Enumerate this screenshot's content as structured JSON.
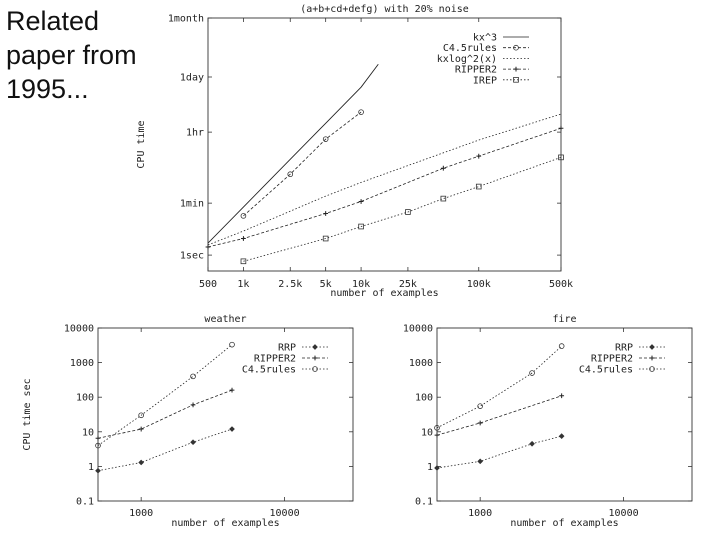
{
  "slide": {
    "caption": [
      "Related",
      "paper from",
      "1995..."
    ]
  },
  "chart_data": [
    {
      "type": "line",
      "title": "(a+b+cd+defg) with 20% noise",
      "xlabel": "number of examples",
      "ylabel": "CPU time",
      "x_scale": "log",
      "y_scale": "log",
      "x_ticks": [
        {
          "v": 500,
          "label": "500"
        },
        {
          "v": 1000,
          "label": "1k"
        },
        {
          "v": 2500,
          "label": "2.5k"
        },
        {
          "v": 5000,
          "label": "5k"
        },
        {
          "v": 10000,
          "label": "10k"
        },
        {
          "v": 25000,
          "label": "25k"
        },
        {
          "v": 100000,
          "label": "100k"
        },
        {
          "v": 500000,
          "label": "500k"
        }
      ],
      "y_ticks": [
        {
          "v": 0.05,
          "label": "1sec"
        },
        {
          "v": 1,
          "label": "1min"
        },
        {
          "v": 60,
          "label": "1hr"
        },
        {
          "v": 1440,
          "label": "1day"
        },
        {
          "v": 43200,
          "label": "1month"
        }
      ],
      "xlim": [
        500,
        500000
      ],
      "ylim": [
        0.02,
        43200
      ],
      "legend_position": "top-right",
      "series": [
        {
          "name": "kx^3",
          "style": "solid",
          "marker": "none",
          "x": [
            500,
            1000,
            2500,
            5000,
            10000,
            14000
          ],
          "y": [
            0.1,
            0.8,
            12.5,
            100,
            800,
            3000
          ]
        },
        {
          "name": "C4.5rules",
          "style": "dotted",
          "marker": "circle",
          "x": [
            1000,
            2500,
            5000,
            10000
          ],
          "y": [
            0.48,
            5.3,
            40,
            190
          ]
        },
        {
          "name": "kxlog^2(x)",
          "style": "dotted",
          "marker": "none",
          "x": [
            500,
            1000,
            5000,
            10000,
            100000,
            500000
          ],
          "y": [
            0.09,
            0.2,
            1.5,
            3.3,
            38,
            170
          ]
        },
        {
          "name": "RIPPER2",
          "style": "dotted",
          "marker": "plus",
          "x": [
            500,
            1000,
            5000,
            10000,
            50000,
            100000,
            500000
          ],
          "y": [
            0.08,
            0.13,
            0.55,
            1.1,
            7.5,
            15,
            75
          ]
        },
        {
          "name": "IREP",
          "style": "dotted",
          "marker": "square",
          "x": [
            1000,
            5000,
            10000,
            25000,
            50000,
            100000,
            500000
          ],
          "y": [
            0.035,
            0.13,
            0.26,
            0.6,
            1.3,
            2.6,
            14
          ]
        }
      ]
    },
    {
      "type": "line",
      "title": "weather",
      "xlabel": "number of examples",
      "ylabel": "CPU time sec",
      "x_scale": "log",
      "y_scale": "log",
      "x_ticks": [
        {
          "v": 1000,
          "label": "1000"
        },
        {
          "v": 10000,
          "label": "10000"
        }
      ],
      "y_ticks": [
        {
          "v": 0.1,
          "label": "0.1"
        },
        {
          "v": 1,
          "label": "1"
        },
        {
          "v": 10,
          "label": "10"
        },
        {
          "v": 100,
          "label": "100"
        },
        {
          "v": 1000,
          "label": "1000"
        },
        {
          "v": 10000,
          "label": "10000"
        }
      ],
      "xlim": [
        500,
        30000
      ],
      "ylim": [
        0.1,
        10000
      ],
      "legend_position": "top-right",
      "series": [
        {
          "name": "RRP",
          "marker": "diamond",
          "x": [
            500,
            1000,
            2300,
            4300
          ],
          "y": [
            0.75,
            1.3,
            5,
            12
          ]
        },
        {
          "name": "RIPPER2",
          "marker": "plus",
          "x": [
            500,
            1000,
            2300,
            4300
          ],
          "y": [
            6.5,
            12,
            60,
            160
          ]
        },
        {
          "name": "C4.5rules",
          "marker": "circle",
          "x": [
            500,
            1000,
            2300,
            4300
          ],
          "y": [
            4,
            30,
            400,
            3300
          ]
        }
      ]
    },
    {
      "type": "line",
      "title": "fire",
      "xlabel": "number of examples",
      "ylabel": "",
      "x_scale": "log",
      "y_scale": "log",
      "x_ticks": [
        {
          "v": 1000,
          "label": "1000"
        },
        {
          "v": 10000,
          "label": "10000"
        }
      ],
      "y_ticks": [
        {
          "v": 0.1,
          "label": "0.1"
        },
        {
          "v": 1,
          "label": "1"
        },
        {
          "v": 10,
          "label": "10"
        },
        {
          "v": 100,
          "label": "100"
        },
        {
          "v": 1000,
          "label": "1000"
        },
        {
          "v": 10000,
          "label": "10000"
        }
      ],
      "xlim": [
        500,
        30000
      ],
      "ylim": [
        0.1,
        10000
      ],
      "legend_position": "top-right",
      "series": [
        {
          "name": "RRP",
          "marker": "diamond",
          "x": [
            500,
            1000,
            2300,
            3700
          ],
          "y": [
            0.9,
            1.4,
            4.5,
            7.5
          ]
        },
        {
          "name": "RIPPER2",
          "marker": "plus",
          "x": [
            500,
            1000,
            3700
          ],
          "y": [
            8,
            18,
            110
          ]
        },
        {
          "name": "C4.5rules",
          "marker": "circle",
          "x": [
            500,
            1000,
            2300,
            3700
          ],
          "y": [
            13,
            55,
            500,
            3000
          ]
        }
      ]
    }
  ]
}
